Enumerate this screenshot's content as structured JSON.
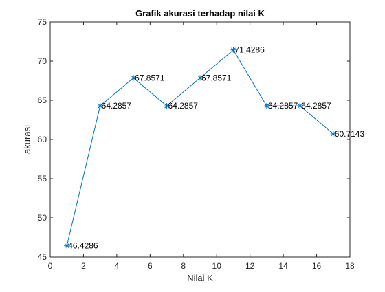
{
  "chart_data": {
    "type": "line",
    "title": "Grafik akurasi terhadap nilai K",
    "xlabel": "Nilai K",
    "ylabel": "akurasi",
    "xlim": [
      0,
      18
    ],
    "ylim": [
      45,
      75
    ],
    "x_ticks": [
      0,
      2,
      4,
      6,
      8,
      10,
      12,
      14,
      16,
      18
    ],
    "y_ticks": [
      45,
      50,
      55,
      60,
      65,
      70,
      75
    ],
    "grid": false,
    "marker": "asterisk",
    "line_color": "#0072BD",
    "series": [
      {
        "x": [
          1,
          3,
          5,
          7,
          9,
          11,
          13,
          15,
          17
        ],
        "y": [
          46.4286,
          64.2857,
          67.8571,
          64.2857,
          67.8571,
          71.4286,
          64.2857,
          64.2857,
          60.7143
        ],
        "labels": [
          "46.4286",
          "64.2857",
          "67.8571",
          "64.2857",
          "67.8571",
          "71.4286",
          "64.2857",
          "64.2857",
          "60.7143"
        ]
      }
    ]
  }
}
